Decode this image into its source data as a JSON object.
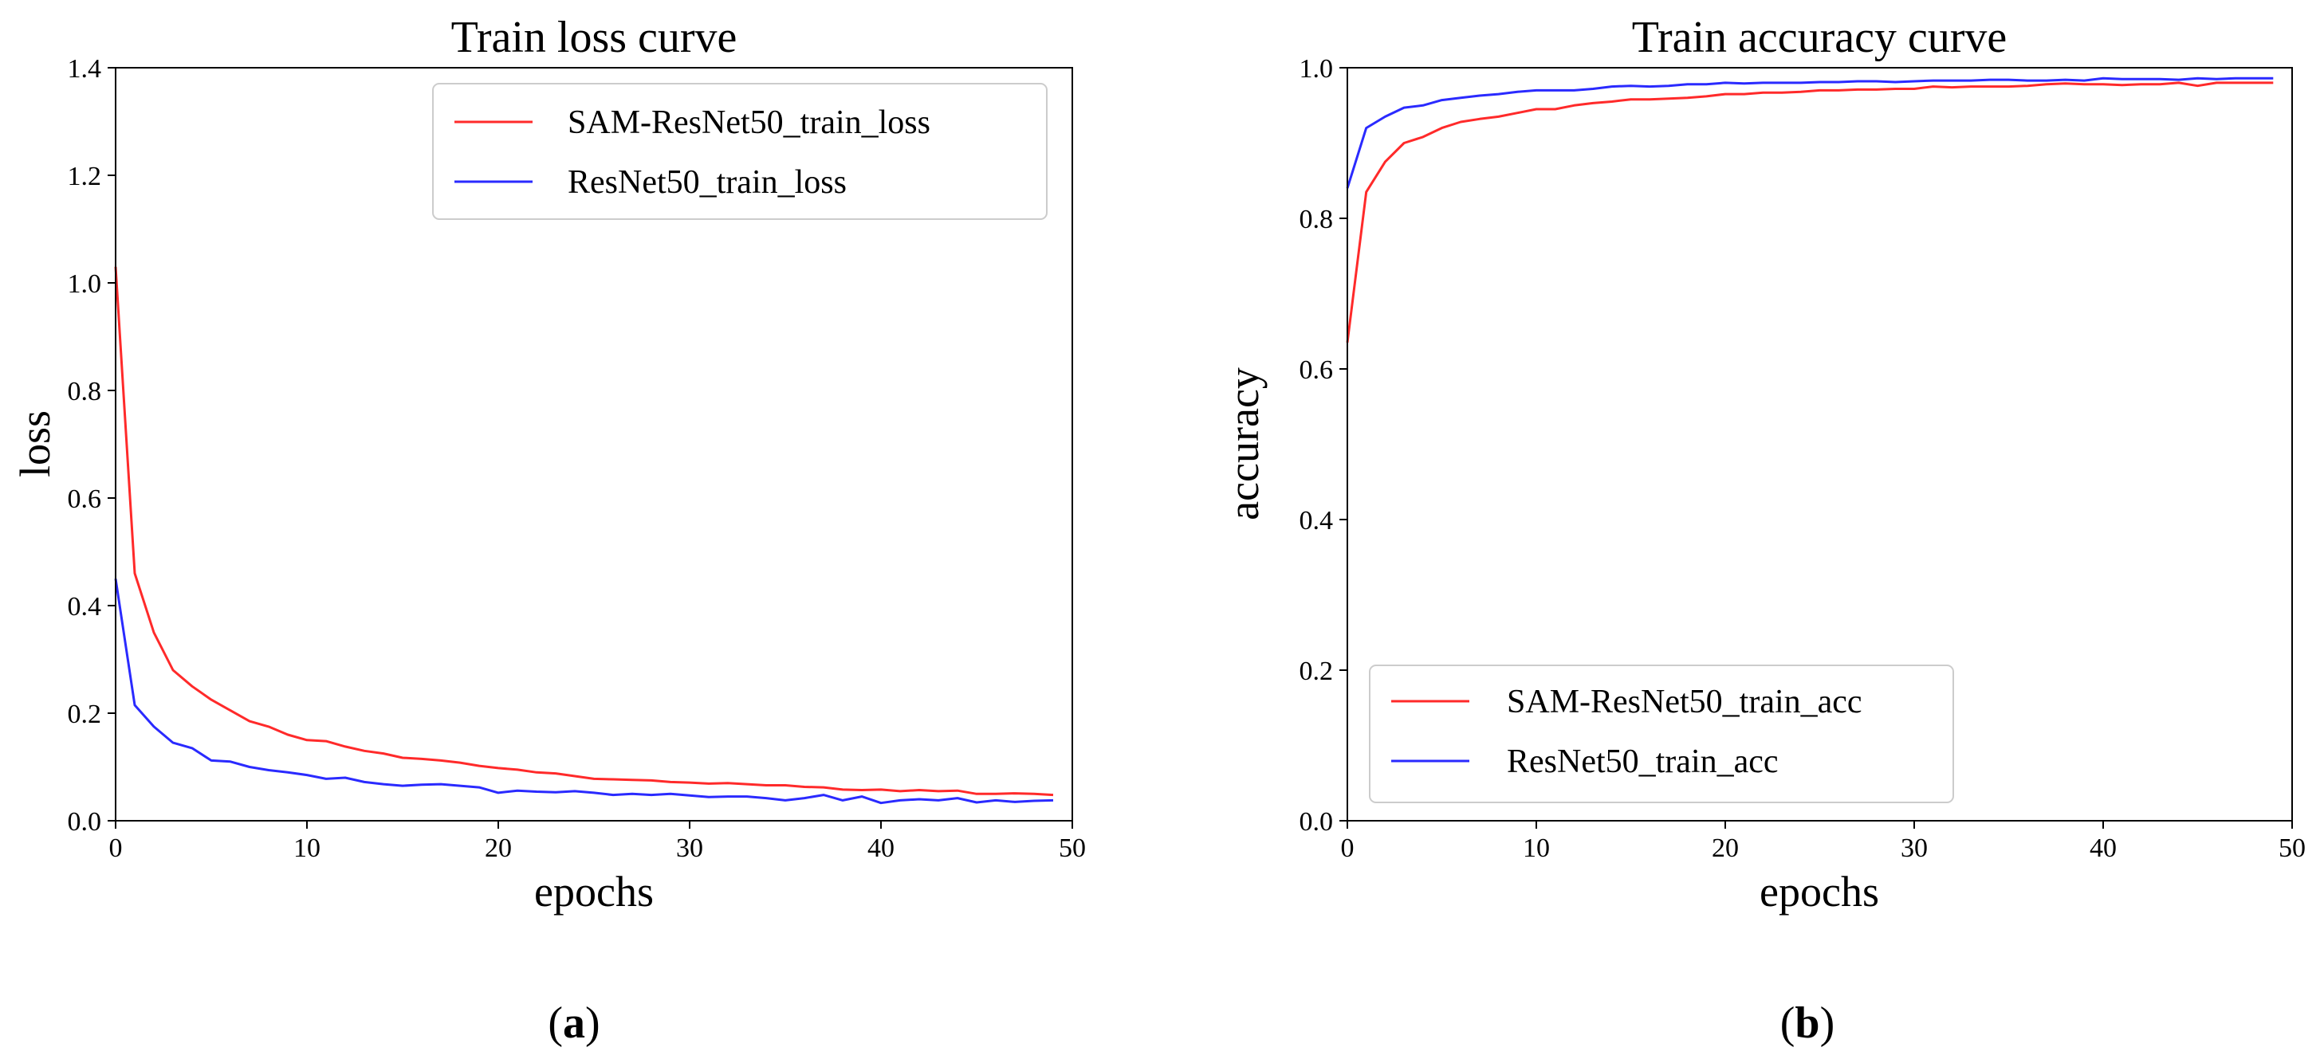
{
  "chart_data": [
    {
      "id": "a",
      "type": "line",
      "title": "Train loss curve",
      "xlabel": "epochs",
      "ylabel": "loss",
      "xlim": [
        0,
        50
      ],
      "ylim": [
        0,
        1.4
      ],
      "xticks": [
        "0",
        "10",
        "20",
        "30",
        "40",
        "50"
      ],
      "yticks": [
        "0.0",
        "0.2",
        "0.4",
        "0.6",
        "0.8",
        "1.0",
        "1.2",
        "1.4"
      ],
      "legend_position": "top-right",
      "panel_label": "a",
      "x": [
        0,
        1,
        2,
        3,
        4,
        5,
        6,
        7,
        8,
        9,
        10,
        11,
        12,
        13,
        14,
        15,
        16,
        17,
        18,
        19,
        20,
        21,
        22,
        23,
        24,
        25,
        26,
        27,
        28,
        29,
        30,
        31,
        32,
        33,
        34,
        35,
        36,
        37,
        38,
        39,
        40,
        41,
        42,
        43,
        44,
        45,
        46,
        47,
        48,
        49
      ],
      "series": [
        {
          "name": "SAM-ResNet50_train_loss",
          "color": "#ff2a2a",
          "values": [
            1.03,
            0.46,
            0.35,
            0.28,
            0.25,
            0.225,
            0.205,
            0.185,
            0.175,
            0.16,
            0.15,
            0.148,
            0.138,
            0.13,
            0.125,
            0.117,
            0.115,
            0.112,
            0.108,
            0.102,
            0.098,
            0.095,
            0.09,
            0.088,
            0.083,
            0.078,
            0.077,
            0.076,
            0.075,
            0.072,
            0.071,
            0.069,
            0.07,
            0.068,
            0.066,
            0.066,
            0.063,
            0.062,
            0.058,
            0.057,
            0.058,
            0.055,
            0.057,
            0.055,
            0.056,
            0.05,
            0.05,
            0.051,
            0.05,
            0.048
          ]
        },
        {
          "name": "ResNet50_train_loss",
          "color": "#2a2aff",
          "values": [
            0.45,
            0.215,
            0.175,
            0.145,
            0.135,
            0.112,
            0.11,
            0.1,
            0.094,
            0.09,
            0.085,
            0.078,
            0.08,
            0.072,
            0.068,
            0.065,
            0.067,
            0.068,
            0.065,
            0.062,
            0.052,
            0.056,
            0.054,
            0.053,
            0.055,
            0.052,
            0.048,
            0.05,
            0.048,
            0.05,
            0.047,
            0.044,
            0.045,
            0.045,
            0.042,
            0.038,
            0.042,
            0.048,
            0.038,
            0.045,
            0.033,
            0.038,
            0.04,
            0.038,
            0.042,
            0.034,
            0.038,
            0.035,
            0.037,
            0.038
          ]
        }
      ]
    },
    {
      "id": "b",
      "type": "line",
      "title": "Train accuracy curve",
      "xlabel": "epochs",
      "ylabel": "accuracy",
      "xlim": [
        0,
        50
      ],
      "ylim": [
        0,
        1.0
      ],
      "xticks": [
        "0",
        "10",
        "20",
        "30",
        "40",
        "50"
      ],
      "yticks": [
        "0.0",
        "0.2",
        "0.4",
        "0.6",
        "0.8",
        "1.0"
      ],
      "legend_position": "bottom-left",
      "panel_label": "b",
      "x": [
        0,
        1,
        2,
        3,
        4,
        5,
        6,
        7,
        8,
        9,
        10,
        11,
        12,
        13,
        14,
        15,
        16,
        17,
        18,
        19,
        20,
        21,
        22,
        23,
        24,
        25,
        26,
        27,
        28,
        29,
        30,
        31,
        32,
        33,
        34,
        35,
        36,
        37,
        38,
        39,
        40,
        41,
        42,
        43,
        44,
        45,
        46,
        47,
        48,
        49
      ],
      "series": [
        {
          "name": "SAM-ResNet50_train_acc",
          "color": "#ff2a2a",
          "values": [
            0.635,
            0.835,
            0.875,
            0.9,
            0.908,
            0.92,
            0.928,
            0.932,
            0.935,
            0.94,
            0.945,
            0.945,
            0.95,
            0.953,
            0.955,
            0.958,
            0.958,
            0.959,
            0.96,
            0.962,
            0.965,
            0.965,
            0.967,
            0.967,
            0.968,
            0.97,
            0.97,
            0.971,
            0.971,
            0.972,
            0.972,
            0.975,
            0.974,
            0.975,
            0.975,
            0.975,
            0.976,
            0.978,
            0.979,
            0.978,
            0.978,
            0.977,
            0.978,
            0.978,
            0.98,
            0.976,
            0.98,
            0.98,
            0.98,
            0.98
          ]
        },
        {
          "name": "ResNet50_train_acc",
          "color": "#2a2aff",
          "values": [
            0.84,
            0.92,
            0.935,
            0.947,
            0.95,
            0.957,
            0.96,
            0.963,
            0.965,
            0.968,
            0.97,
            0.97,
            0.97,
            0.972,
            0.975,
            0.976,
            0.975,
            0.976,
            0.978,
            0.978,
            0.98,
            0.979,
            0.98,
            0.98,
            0.98,
            0.981,
            0.981,
            0.982,
            0.982,
            0.981,
            0.982,
            0.983,
            0.983,
            0.983,
            0.984,
            0.984,
            0.983,
            0.983,
            0.984,
            0.983,
            0.986,
            0.985,
            0.985,
            0.985,
            0.984,
            0.986,
            0.985,
            0.986,
            0.986,
            0.986
          ]
        }
      ]
    }
  ]
}
